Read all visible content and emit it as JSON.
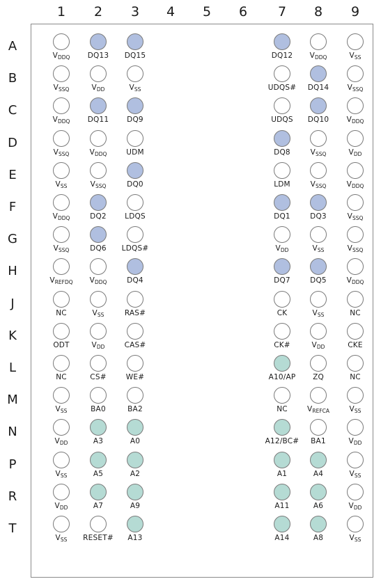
{
  "columns": [
    "1",
    "2",
    "3",
    "4",
    "5",
    "6",
    "7",
    "8",
    "9"
  ],
  "rows": [
    "A",
    "B",
    "C",
    "D",
    "E",
    "F",
    "G",
    "H",
    "J",
    "K",
    "L",
    "M",
    "N",
    "P",
    "R",
    "T"
  ],
  "fill_colors": {
    "dq": "#b0bfe0",
    "address": "#b5dbd4",
    "power_other": "#ffffff"
  },
  "balls": [
    [
      {
        "col": "1",
        "main": "V",
        "sub": "DDQ",
        "fill": "white"
      },
      {
        "col": "2",
        "main": "DQ13",
        "sub": "",
        "fill": "dq"
      },
      {
        "col": "3",
        "main": "DQ15",
        "sub": "",
        "fill": "dq"
      },
      {
        "col": "7",
        "main": "DQ12",
        "sub": "",
        "fill": "dq"
      },
      {
        "col": "8",
        "main": "V",
        "sub": "DDQ",
        "fill": "white"
      },
      {
        "col": "9",
        "main": "V",
        "sub": "SS",
        "fill": "white"
      }
    ],
    [
      {
        "col": "1",
        "main": "V",
        "sub": "SSQ",
        "fill": "white"
      },
      {
        "col": "2",
        "main": "V",
        "sub": "DD",
        "fill": "white"
      },
      {
        "col": "3",
        "main": "V",
        "sub": "SS",
        "fill": "white"
      },
      {
        "col": "7",
        "main": "UDQS#",
        "sub": "",
        "fill": "white"
      },
      {
        "col": "8",
        "main": "DQ14",
        "sub": "",
        "fill": "dq"
      },
      {
        "col": "9",
        "main": "V",
        "sub": "SSQ",
        "fill": "white"
      }
    ],
    [
      {
        "col": "1",
        "main": "V",
        "sub": "DDQ",
        "fill": "white"
      },
      {
        "col": "2",
        "main": "DQ11",
        "sub": "",
        "fill": "dq"
      },
      {
        "col": "3",
        "main": "DQ9",
        "sub": "",
        "fill": "dq"
      },
      {
        "col": "7",
        "main": "UDQS",
        "sub": "",
        "fill": "white"
      },
      {
        "col": "8",
        "main": "DQ10",
        "sub": "",
        "fill": "dq"
      },
      {
        "col": "9",
        "main": "V",
        "sub": "DDQ",
        "fill": "white"
      }
    ],
    [
      {
        "col": "1",
        "main": "V",
        "sub": "SSQ",
        "fill": "white"
      },
      {
        "col": "2",
        "main": "V",
        "sub": "DDQ",
        "fill": "white"
      },
      {
        "col": "3",
        "main": "UDM",
        "sub": "",
        "fill": "white"
      },
      {
        "col": "7",
        "main": "DQ8",
        "sub": "",
        "fill": "dq"
      },
      {
        "col": "8",
        "main": "V",
        "sub": "SSQ",
        "fill": "white"
      },
      {
        "col": "9",
        "main": "V",
        "sub": "DD",
        "fill": "white"
      }
    ],
    [
      {
        "col": "1",
        "main": "V",
        "sub": "SS",
        "fill": "white"
      },
      {
        "col": "2",
        "main": "V",
        "sub": "SSQ",
        "fill": "white"
      },
      {
        "col": "3",
        "main": "DQ0",
        "sub": "",
        "fill": "dq"
      },
      {
        "col": "7",
        "main": "LDM",
        "sub": "",
        "fill": "white"
      },
      {
        "col": "8",
        "main": "V",
        "sub": "SSQ",
        "fill": "white"
      },
      {
        "col": "9",
        "main": "V",
        "sub": "DDQ",
        "fill": "white"
      }
    ],
    [
      {
        "col": "1",
        "main": "V",
        "sub": "DDQ",
        "fill": "white"
      },
      {
        "col": "2",
        "main": "DQ2",
        "sub": "",
        "fill": "dq"
      },
      {
        "col": "3",
        "main": "LDQS",
        "sub": "",
        "fill": "white"
      },
      {
        "col": "7",
        "main": "DQ1",
        "sub": "",
        "fill": "dq"
      },
      {
        "col": "8",
        "main": "DQ3",
        "sub": "",
        "fill": "dq"
      },
      {
        "col": "9",
        "main": "V",
        "sub": "SSQ",
        "fill": "white"
      }
    ],
    [
      {
        "col": "1",
        "main": "V",
        "sub": "SSQ",
        "fill": "white"
      },
      {
        "col": "2",
        "main": "DQ6",
        "sub": "",
        "fill": "dq"
      },
      {
        "col": "3",
        "main": "LDQS#",
        "sub": "",
        "fill": "white"
      },
      {
        "col": "7",
        "main": "V",
        "sub": "DD",
        "fill": "white"
      },
      {
        "col": "8",
        "main": "V",
        "sub": "SS",
        "fill": "white"
      },
      {
        "col": "9",
        "main": "V",
        "sub": "SSQ",
        "fill": "white"
      }
    ],
    [
      {
        "col": "1",
        "main": "V",
        "sub": "REFDQ",
        "fill": "white"
      },
      {
        "col": "2",
        "main": "V",
        "sub": "DDQ",
        "fill": "white"
      },
      {
        "col": "3",
        "main": "DQ4",
        "sub": "",
        "fill": "dq"
      },
      {
        "col": "7",
        "main": "DQ7",
        "sub": "",
        "fill": "dq"
      },
      {
        "col": "8",
        "main": "DQ5",
        "sub": "",
        "fill": "dq"
      },
      {
        "col": "9",
        "main": "V",
        "sub": "DDQ",
        "fill": "white"
      }
    ],
    [
      {
        "col": "1",
        "main": "NC",
        "sub": "",
        "fill": "white"
      },
      {
        "col": "2",
        "main": "V",
        "sub": "SS",
        "fill": "white"
      },
      {
        "col": "3",
        "main": "RAS#",
        "sub": "",
        "fill": "white"
      },
      {
        "col": "7",
        "main": "CK",
        "sub": "",
        "fill": "white"
      },
      {
        "col": "8",
        "main": "V",
        "sub": "SS",
        "fill": "white"
      },
      {
        "col": "9",
        "main": "NC",
        "sub": "",
        "fill": "white"
      }
    ],
    [
      {
        "col": "1",
        "main": "ODT",
        "sub": "",
        "fill": "white"
      },
      {
        "col": "2",
        "main": "V",
        "sub": "DD",
        "fill": "white"
      },
      {
        "col": "3",
        "main": "CAS#",
        "sub": "",
        "fill": "white"
      },
      {
        "col": "7",
        "main": "CK#",
        "sub": "",
        "fill": "white"
      },
      {
        "col": "8",
        "main": "V",
        "sub": "DD",
        "fill": "white"
      },
      {
        "col": "9",
        "main": "CKE",
        "sub": "",
        "fill": "white"
      }
    ],
    [
      {
        "col": "1",
        "main": "NC",
        "sub": "",
        "fill": "white"
      },
      {
        "col": "2",
        "main": "CS#",
        "sub": "",
        "fill": "white"
      },
      {
        "col": "3",
        "main": "WE#",
        "sub": "",
        "fill": "white"
      },
      {
        "col": "7",
        "main": "A10/AP",
        "sub": "",
        "fill": "address"
      },
      {
        "col": "8",
        "main": "ZQ",
        "sub": "",
        "fill": "white"
      },
      {
        "col": "9",
        "main": "NC",
        "sub": "",
        "fill": "white"
      }
    ],
    [
      {
        "col": "1",
        "main": "V",
        "sub": "SS",
        "fill": "white"
      },
      {
        "col": "2",
        "main": "BA0",
        "sub": "",
        "fill": "white"
      },
      {
        "col": "3",
        "main": "BA2",
        "sub": "",
        "fill": "white"
      },
      {
        "col": "7",
        "main": "NC",
        "sub": "",
        "fill": "white"
      },
      {
        "col": "8",
        "main": "V",
        "sub": "REFCA",
        "fill": "white"
      },
      {
        "col": "9",
        "main": "V",
        "sub": "SS",
        "fill": "white"
      }
    ],
    [
      {
        "col": "1",
        "main": "V",
        "sub": "DD",
        "fill": "white"
      },
      {
        "col": "2",
        "main": "A3",
        "sub": "",
        "fill": "address"
      },
      {
        "col": "3",
        "main": "A0",
        "sub": "",
        "fill": "address"
      },
      {
        "col": "7",
        "main": "A12/BC#",
        "sub": "",
        "fill": "address"
      },
      {
        "col": "8",
        "main": "BA1",
        "sub": "",
        "fill": "white"
      },
      {
        "col": "9",
        "main": "V",
        "sub": "DD",
        "fill": "white"
      }
    ],
    [
      {
        "col": "1",
        "main": "V",
        "sub": "SS",
        "fill": "white"
      },
      {
        "col": "2",
        "main": "A5",
        "sub": "",
        "fill": "address"
      },
      {
        "col": "3",
        "main": "A2",
        "sub": "",
        "fill": "address"
      },
      {
        "col": "7",
        "main": "A1",
        "sub": "",
        "fill": "address"
      },
      {
        "col": "8",
        "main": "A4",
        "sub": "",
        "fill": "address"
      },
      {
        "col": "9",
        "main": "V",
        "sub": "SS",
        "fill": "white"
      }
    ],
    [
      {
        "col": "1",
        "main": "V",
        "sub": "DD",
        "fill": "white"
      },
      {
        "col": "2",
        "main": "A7",
        "sub": "",
        "fill": "address"
      },
      {
        "col": "3",
        "main": "A9",
        "sub": "",
        "fill": "address"
      },
      {
        "col": "7",
        "main": "A11",
        "sub": "",
        "fill": "address"
      },
      {
        "col": "8",
        "main": "A6",
        "sub": "",
        "fill": "address"
      },
      {
        "col": "9",
        "main": "V",
        "sub": "DD",
        "fill": "white"
      }
    ],
    [
      {
        "col": "1",
        "main": "V",
        "sub": "SS",
        "fill": "white"
      },
      {
        "col": "2",
        "main": "RESET#",
        "sub": "",
        "fill": "white"
      },
      {
        "col": "3",
        "main": "A13",
        "sub": "",
        "fill": "address"
      },
      {
        "col": "7",
        "main": "A14",
        "sub": "",
        "fill": "address"
      },
      {
        "col": "8",
        "main": "A8",
        "sub": "",
        "fill": "address"
      },
      {
        "col": "9",
        "main": "V",
        "sub": "SS",
        "fill": "white"
      }
    ]
  ]
}
